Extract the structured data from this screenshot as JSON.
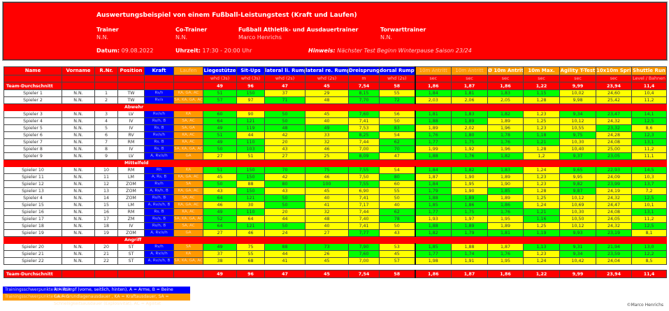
{
  "header": {
    "title": "Auswertungsbeispiel von einem Fußball-Leistungstest (Kraft und Laufen)",
    "staff": [
      {
        "role": "Trainer",
        "name": "N.N."
      },
      {
        "role": "Co-Trainer",
        "name": "N.N."
      },
      {
        "role": "Fußball Athletik- und Ausdauertrainer",
        "name": "Marco Henrichs"
      },
      {
        "role": "Torwarttrainer",
        "name": "N.N."
      }
    ],
    "datum_label": "Datum:",
    "datum": "09.08.2022",
    "uhrzeit_label": "Uhrzeit:",
    "uhrzeit": "17:30 - 20:00 Uhr",
    "hinweis_label": "Hinweis:",
    "hinweis": "Nächster Test Beginn Winterpause Saison 23/24"
  },
  "columns": [
    "Name",
    "Vorname",
    "R.Nr.",
    "Position",
    "Kraft",
    "Laufen",
    "Liegestütze",
    "Sit-Ups",
    "lateral li. Rumpf",
    "lateral re. Rumpf",
    "Dreisprung",
    "dorsal Rumpf",
    "10m Antritt",
    "10m Antritt",
    "Ø 10m Antritt",
    "10m Max.",
    "Agility T-Test",
    "10x10m Sprint",
    "Shuttle Run"
  ],
  "units": [
    "whd (3s)",
    "whd (3s)",
    "whd (2s)",
    "whd (2s)",
    "m",
    "whd (2s)",
    "sec",
    "sec",
    "sec",
    "sec",
    "sec",
    "sec",
    "Level / Bahnen"
  ],
  "team_avg_label": "Team-Durchschnitt",
  "team_avg": [
    "49",
    "96",
    "47",
    "45",
    "7,54",
    "58",
    "1,86",
    "1,87",
    "1,86",
    "1,22",
    "9,99",
    "23,94",
    "11,4"
  ],
  "colors": {
    "red": "#ff0000",
    "blue": "#0000ff",
    "orange": "#ff9900",
    "green": "#00ff00",
    "yellow": "#ffff00"
  },
  "groups": [
    {
      "label": "",
      "players": [
        {
          "name": "Spieler 1",
          "vorname": "N.N.",
          "nr": "1",
          "pos": "TW",
          "kraft": "Rs/h",
          "laufen": "KA, GA, AC",
          "values": [
            "51",
            "150",
            "37",
            "29",
            "8,15",
            "55",
            "1,84",
            "1,81",
            "1,83",
            "1,15",
            "10,02",
            "24,60",
            "10,4"
          ],
          "status": "ggyygygggg yyy"
        },
        {
          "name": "Spieler 2",
          "vorname": "N.N.",
          "nr": "2",
          "pos": "TW",
          "kraft": "Rv/s",
          "laufen": "SA, KA, GA, AC",
          "values": [
            "57",
            "97",
            "71",
            "48",
            "7,70",
            "72",
            "2,03",
            "2,06",
            "2,05",
            "1,28",
            "9,98",
            "25,42",
            "11,2"
          ],
          "status": "gygygg yyyyyyy"
        }
      ]
    },
    {
      "label": "Abwehr",
      "players": [
        {
          "name": "Spieler 3",
          "vorname": "N.N.",
          "nr": "3",
          "pos": "LV",
          "kraft": "Rv/s/h",
          "laufen": "KA",
          "values": [
            "60",
            "90",
            "50",
            "45",
            "7,60",
            "56",
            "1,81",
            "1,83",
            "1,82",
            "1,23",
            "9,34",
            "23,47",
            "14,1"
          ],
          "status": "gygygy gggyggg"
        },
        {
          "name": "Spieler 4",
          "vorname": "N.N.",
          "nr": "4",
          "pos": "IV",
          "kraft": "Rs/h, B",
          "laufen": "SA, AC",
          "values": [
            "64",
            "121",
            "50",
            "40",
            "7,41",
            "50",
            "1,88",
            "1,89",
            "1,89",
            "1,25",
            "10,12",
            "24,32",
            "12,5"
          ],
          "status": "gggyyy ggyyyyg"
        },
        {
          "name": "Spieler 5",
          "vorname": "N.N.",
          "nr": "5",
          "pos": "IV",
          "kraft": "Rs, B",
          "laufen": "SA, GA",
          "values": [
            "49",
            "119",
            "48",
            "49",
            "7,53",
            "83",
            "1,89",
            "2,02",
            "1,96",
            "1,23",
            "10,55",
            "23,32",
            "8,6"
          ],
          "status": "ggggyg yyyyygy"
        },
        {
          "name": "Spieler 6",
          "vorname": "N.N.",
          "nr": "6",
          "pos": "RV",
          "kraft": "Rv/s/h",
          "laufen": "KA, AC",
          "values": [
            "51",
            "44",
            "42",
            "33",
            "8,25",
            "54",
            "1,76",
            "1,80",
            "1,78",
            "1,18",
            "9,75",
            "24,28",
            "12,3"
          ],
          "status": "gyyygy ggggg yg"
        },
        {
          "name": "Spieler 7",
          "vorname": "N.N.",
          "nr": "7",
          "pos": "RM",
          "kraft": "Rs, B",
          "laufen": "KA, AC",
          "values": [
            "49",
            "110",
            "20",
            "32",
            "7,44",
            "62",
            "1,77",
            "1,75",
            "1,76",
            "1,21",
            "10,30",
            "24,08",
            "13,1"
          ],
          "status": "ggyyyg ggggyyg"
        },
        {
          "name": "Spieler 8",
          "vorname": "N.N.",
          "nr": "8",
          "pos": "IV",
          "kraft": "Rs, B",
          "laufen": "SA, KA, GA, AC",
          "values": [
            "50",
            "103",
            "43",
            "46",
            "7,00",
            "70",
            "1,99",
            "1,92",
            "1,96",
            "1,28",
            "10,40",
            "25,00",
            "11,2"
          ],
          "status": "ggyyyg yyyyyyy"
        },
        {
          "name": "Spieler 9",
          "vorname": "N.N.",
          "nr": "9",
          "pos": "LV",
          "kraft": "A, Rv/s/h",
          "laufen": "GA",
          "values": [
            "27",
            "51",
            "27",
            "25",
            "8,09",
            "47",
            "1,88",
            "1,76",
            "1,82",
            "1,2",
            "9,37",
            "23,05",
            "11,1"
          ],
          "status": "yyyygy gggyggy"
        }
      ]
    },
    {
      "label": "Mittelfeld",
      "players": [
        {
          "name": "Spieler 10",
          "vorname": "N.N.",
          "nr": "10",
          "pos": "RM",
          "kraft": "Rh",
          "laufen": "KA",
          "values": [
            "51",
            "150",
            "70",
            "75",
            "7,55",
            "54",
            "1,84",
            "1,82",
            "1,83",
            "1,24",
            "9,65",
            "22,93",
            "14,5"
          ],
          "status": "gggggy gggyggg"
        },
        {
          "name": "Spieler 11",
          "vorname": "N.N.",
          "nr": "11",
          "pos": "LM",
          "kraft": "A, Rs, B",
          "laufen": "KA, GA, AC",
          "values": [
            "45",
            "150",
            "42",
            "46",
            "7,50",
            "80",
            "1,87",
            "1,90",
            "1,89",
            "1,23",
            "9,95",
            "24,09",
            "10,3"
          ],
          "status": "ygyyyg yyyyyyy"
        },
        {
          "name": "Spieler 12",
          "vorname": "N.N.",
          "nr": "12",
          "pos": "ZOM",
          "kraft": "Rv/h",
          "laufen": "SA",
          "values": [
            "50",
            "88",
            "80",
            "100",
            "7,55",
            "60",
            "1,84",
            "1,95",
            "1,90",
            "1,23",
            "9,82",
            "23,99",
            "13,7"
          ],
          "status": "gyggg y gyyyggg"
        },
        {
          "name": "Spieler 13",
          "vorname": "N.N.",
          "nr": "13",
          "pos": "ZOM",
          "kraft": "A, Rs/h, B",
          "laufen": "KA, GA, AC",
          "values": [
            "43",
            "150",
            "43",
            "45",
            "6,90",
            "55",
            "1,79",
            "1,90",
            "1,85",
            "1,28",
            "9,87",
            "24,19",
            "7,2"
          ],
          "status": "ygyyyy gygygyy"
        },
        {
          "name": "Spieler 4",
          "vorname": "N.N.",
          "nr": "14",
          "pos": "ZOM",
          "kraft": "Rs/h, B",
          "laufen": "SA, AC",
          "values": [
            "64",
            "121",
            "50",
            "40",
            "7,41",
            "50",
            "1,88",
            "1,89",
            "1,89",
            "1,25",
            "10,12",
            "24,32",
            "12,5"
          ],
          "status": "gggyyy ggyyyyg"
        },
        {
          "name": "Spieler 15",
          "vorname": "N.N.",
          "nr": "15",
          "pos": "LM",
          "kraft": "A, Rv/s/h, B",
          "laufen": "KA, GA, AC",
          "values": [
            "46",
            "30",
            "50",
            "41",
            "7,17",
            "40",
            "1,85",
            "1,86",
            "1,86",
            "1,24",
            "10,69",
            "24,47",
            "10,1"
          ],
          "status": "yygyyy gggyyyy"
        },
        {
          "name": "Spieler 16",
          "vorname": "N.N.",
          "nr": "16",
          "pos": "RM",
          "kraft": "Rs, B",
          "laufen": "KA, AC",
          "values": [
            "49",
            "110",
            "20",
            "32",
            "7,44",
            "62",
            "1,77",
            "1,75",
            "1,76",
            "1,21",
            "10,30",
            "24,08",
            "13,1"
          ],
          "status": "ggyyyg ggggyyg"
        },
        {
          "name": "Spieler 17",
          "vorname": "N.N.",
          "nr": "17",
          "pos": "ZM",
          "kraft": "Rv/s, B",
          "laufen": "SA, KA, GA, AC",
          "values": [
            "52",
            "64",
            "44",
            "48",
            "7,40",
            "78",
            "1,93",
            "1,97",
            "1,95",
            "1,16",
            "10,50",
            "24,05",
            "11,2"
          ],
          "status": "gyyyyg yyygyyy"
        },
        {
          "name": "Spieler 18",
          "vorname": "N.N.",
          "nr": "18",
          "pos": "IV",
          "kraft": "Rs/h, B",
          "laufen": "SA, AC",
          "values": [
            "64",
            "121",
            "50",
            "40",
            "7,41",
            "50",
            "1,88",
            "1,89",
            "1,89",
            "1,25",
            "10,12",
            "24,32",
            "12,5"
          ],
          "status": "gggyyy ggyyyyg"
        },
        {
          "name": "Spieler 19",
          "vorname": "N.N.",
          "nr": "19",
          "pos": "ZOM",
          "kraft": "A, Rv/s/h",
          "laufen": "GA",
          "values": [
            "27",
            "46",
            "24",
            "27",
            "7,77",
            "43",
            "1,82",
            "1,79",
            "1,81",
            "1,19",
            "9,93",
            "23,19",
            "8,1"
          ],
          "status": "yyyygy ggggggy"
        }
      ]
    },
    {
      "label": "Angriff",
      "players": [
        {
          "name": "Spieler 20",
          "vorname": "N.N.",
          "nr": "20",
          "pos": "ST",
          "kraft": "Rv/h",
          "laufen": "SA",
          "values": [
            "49",
            "75",
            "88",
            "73",
            "7,90",
            "53",
            "1,85",
            "1,88",
            "1,87",
            "1,13",
            "9,31",
            "21,94",
            "13,0"
          ],
          "status": "gygggy gyyggg g"
        },
        {
          "name": "Spieler 21",
          "vorname": "N.N.",
          "nr": "21",
          "pos": "ST",
          "kraft": "A, Rv/s/h",
          "laufen": "KA",
          "values": [
            "37",
            "55",
            "44",
            "26",
            "7,60",
            "45",
            "1,77",
            "1,74",
            "1,76",
            "1,23",
            "9,34",
            "23,59",
            "12,2"
          ],
          "status": "yyyygy gggyggg"
        },
        {
          "name": "Spieler 22",
          "vorname": "N.N.",
          "nr": "22",
          "pos": "ST",
          "kraft": "A, Rv/s/h, B",
          "laufen": "SA, KA, GA, AC",
          "values": [
            "38",
            "68",
            "41",
            "45",
            "7,00",
            "57",
            "1,98",
            "1,91",
            "1,95",
            "1,24",
            "10,42",
            "24,04",
            "8,5"
          ],
          "status": "yyyyyy yyyyyyy"
        }
      ]
    }
  ],
  "legend": [
    {
      "label": "Trainingsschwerpunkte Athletik",
      "text": "R = Rumpf (vorne, seitlich, hinten), A = Arme, B = Beine"
    },
    {
      "label": "Trainingsschwerpunkte Laufen",
      "text": "GA = Grundlagenausdauer , KA = Kraftausdauer, SA = Schnelligkeitsausdauer (Explosivität), AC = Agilität"
    }
  ],
  "copyright": "©Marco Henrichs"
}
